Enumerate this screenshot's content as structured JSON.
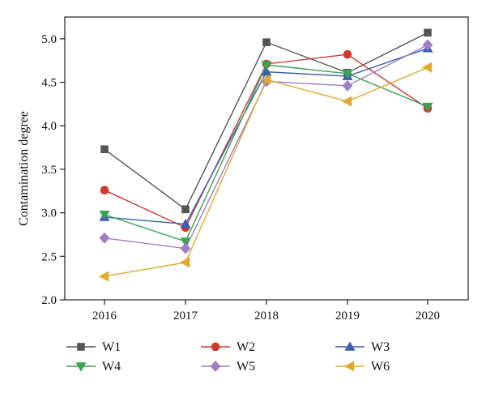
{
  "chart_data": {
    "type": "line",
    "title": "",
    "xlabel": "",
    "ylabel": "Contamination degree",
    "x": [
      "2016",
      "2017",
      "2018",
      "2019",
      "2020"
    ],
    "ylim": [
      2.0,
      5.25
    ],
    "yticks": [
      "2.0",
      "2.5",
      "3.0",
      "3.5",
      "4.0",
      "4.5",
      "5.0"
    ],
    "grid": false,
    "legend_position": "bottom",
    "series": [
      {
        "name": "W1",
        "color": "#555555",
        "marker": "square",
        "values": [
          3.73,
          3.04,
          4.96,
          4.61,
          5.07
        ]
      },
      {
        "name": "W2",
        "color": "#d0392f",
        "marker": "circle",
        "values": [
          3.26,
          2.83,
          4.71,
          4.82,
          4.2
        ]
      },
      {
        "name": "W3",
        "color": "#3a5fad",
        "marker": "triangle-up",
        "values": [
          2.95,
          2.87,
          4.62,
          4.57,
          4.89
        ]
      },
      {
        "name": "W4",
        "color": "#3aa155",
        "marker": "triangle-down",
        "values": [
          2.98,
          2.67,
          4.7,
          4.6,
          4.22
        ]
      },
      {
        "name": "W5",
        "color": "#a07ec4",
        "marker": "diamond",
        "values": [
          2.71,
          2.59,
          4.51,
          4.46,
          4.93
        ]
      },
      {
        "name": "W6",
        "color": "#e0a82e",
        "marker": "triangle-left",
        "values": [
          2.27,
          2.43,
          4.53,
          4.28,
          4.67
        ]
      }
    ]
  }
}
